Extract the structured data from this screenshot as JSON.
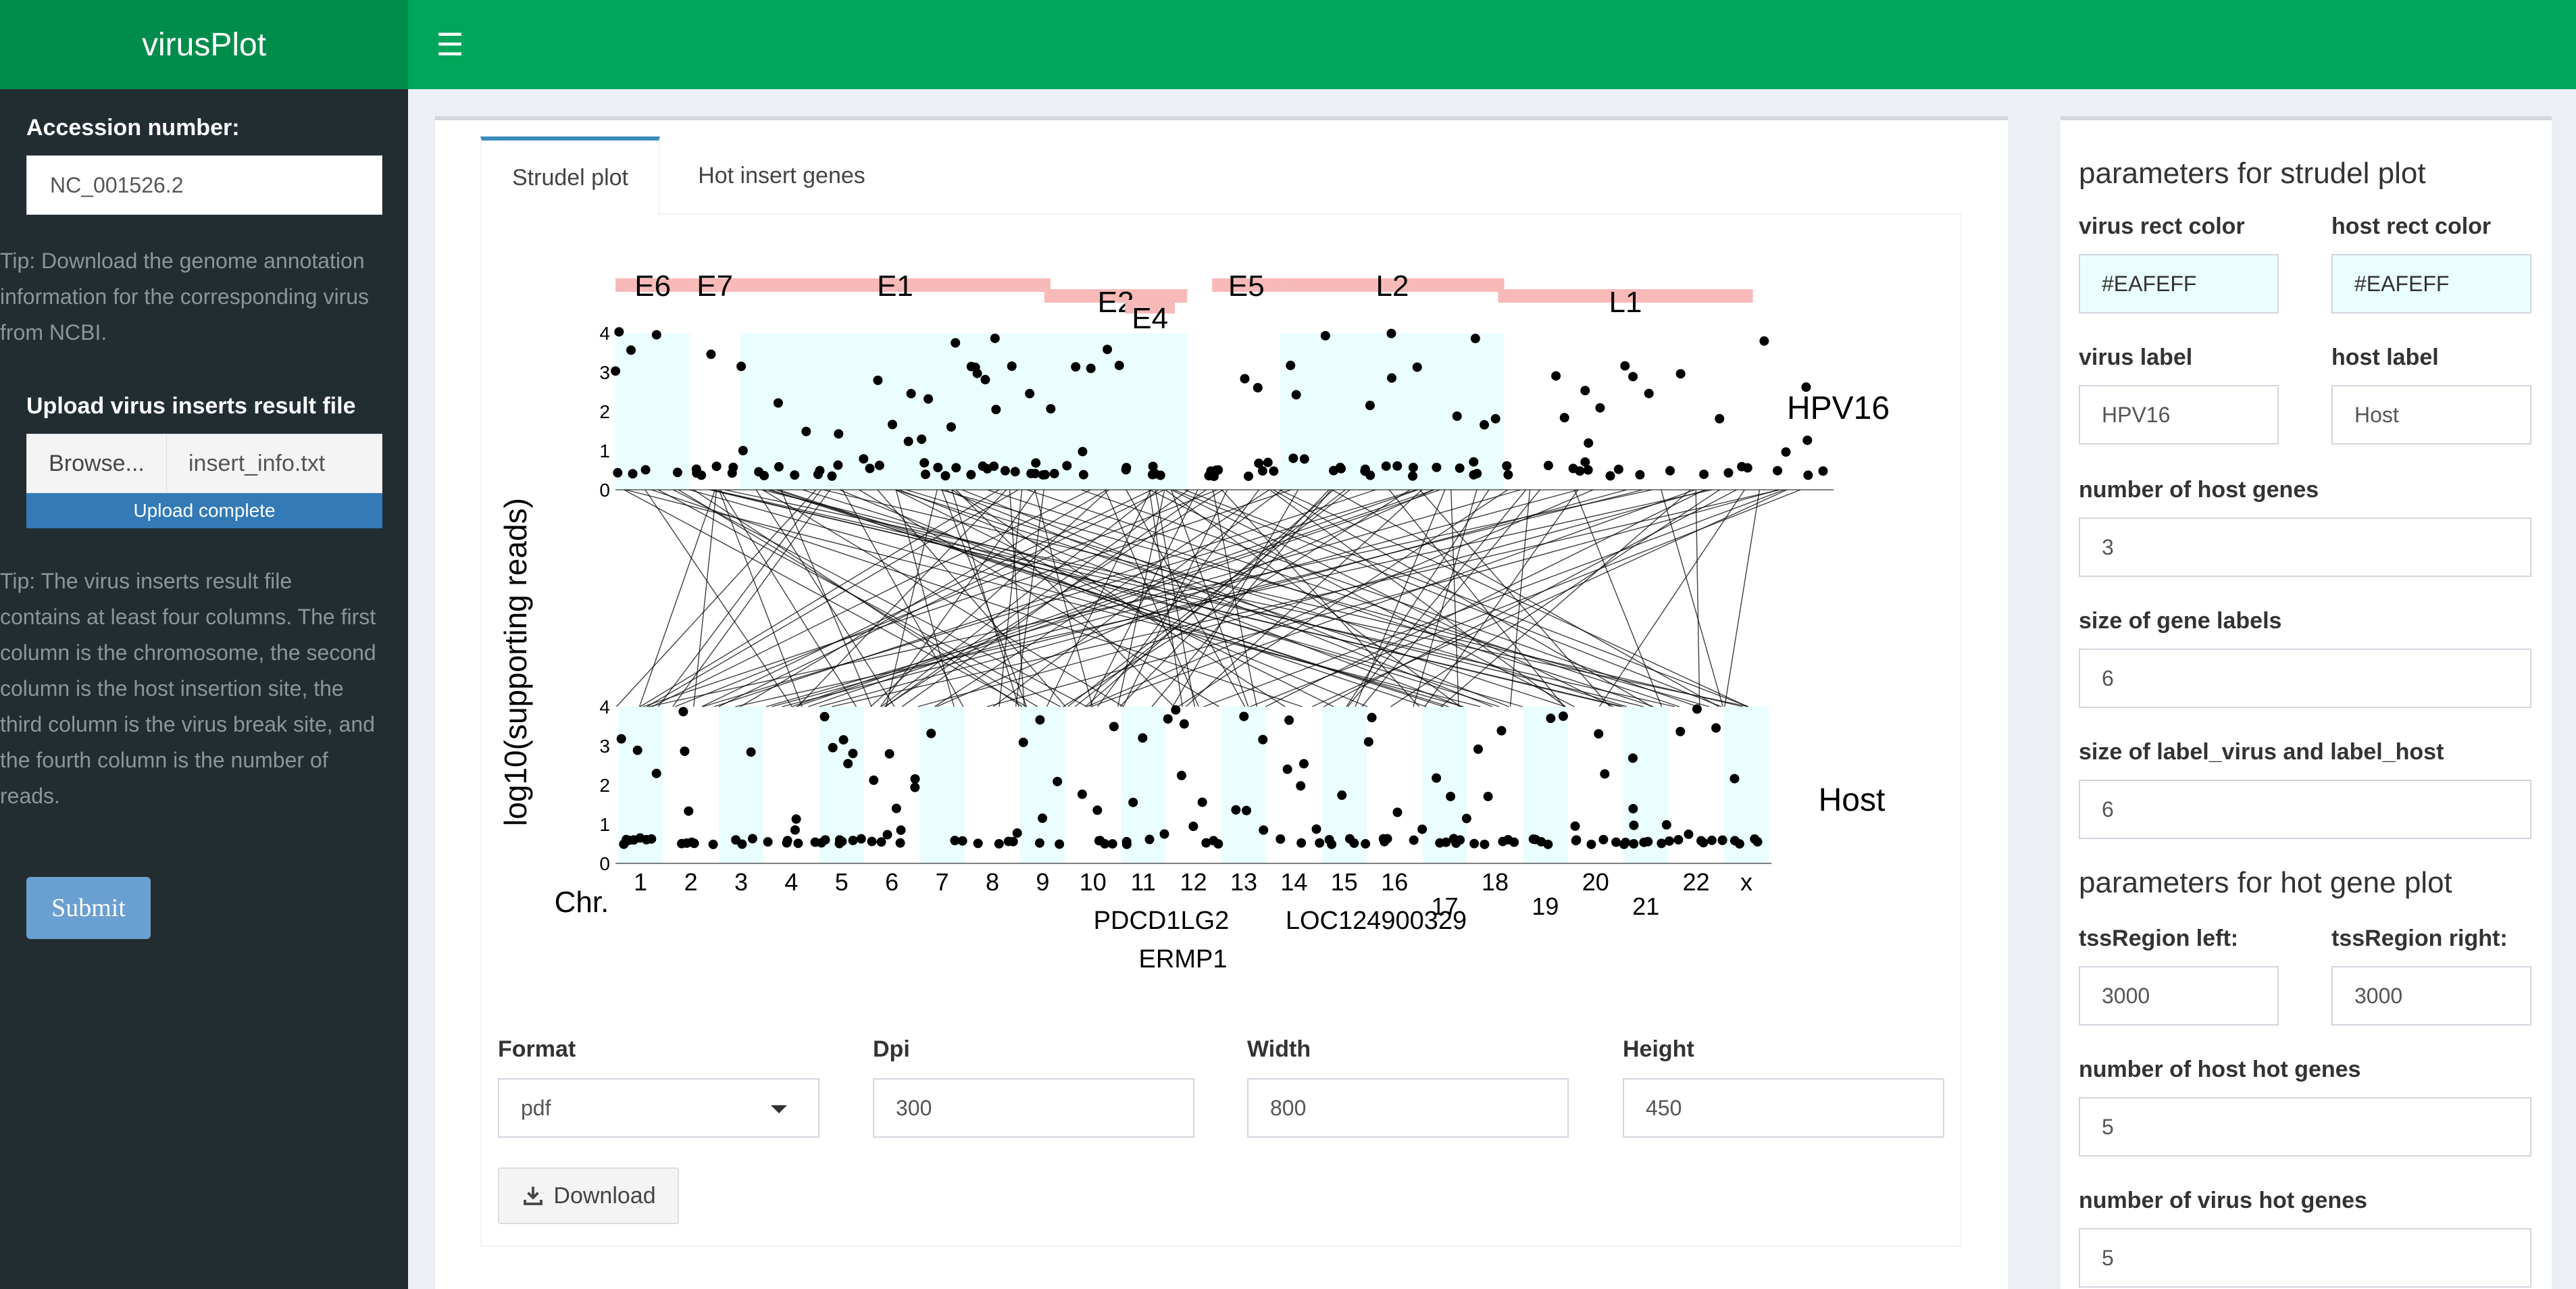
{
  "header": {
    "app_title": "virusPlot"
  },
  "sidebar": {
    "accession_label": "Accession number:",
    "accession_value": "NC_001526.2",
    "tip1": [
      "Tip: Download the genome annotation",
      "information for the corresponding virus",
      "from NCBI."
    ],
    "upload_label": "Upload virus inserts result file",
    "browse_label": "Browse...",
    "file_name": "insert_info.txt",
    "upload_status": "Upload complete",
    "tip2": [
      "Tip: The virus inserts result file",
      "contains at least four columns. The first",
      "column is the chromosome, the second",
      "column is the host insertion site, the",
      "third column is the virus break site, and",
      "the fourth column is the number of",
      "reads."
    ],
    "submit_label": "Submit"
  },
  "tabs": [
    {
      "label": "Strudel plot"
    },
    {
      "label": "Hot insert genes"
    }
  ],
  "chart_data": {
    "type": "scatter",
    "ylabel": "log10(supporting reads)",
    "virus_label": "HPV16",
    "host_label": "Host",
    "chr_label": "Chr.",
    "yticks": [
      "0",
      "1",
      "2",
      "3",
      "4"
    ],
    "virus_genes": [
      {
        "name": "E6",
        "start": 0.0,
        "end": 0.06,
        "row": 0
      },
      {
        "name": "E7",
        "start": 0.06,
        "end": 0.1,
        "row": 0
      },
      {
        "name": "E1",
        "start": 0.1,
        "end": 0.35,
        "row": 0
      },
      {
        "name": "E2",
        "start": 0.345,
        "end": 0.46,
        "row": 1
      },
      {
        "name": "E4",
        "start": 0.41,
        "end": 0.45,
        "row": 2
      },
      {
        "name": "E5",
        "start": 0.48,
        "end": 0.535,
        "row": 0
      },
      {
        "name": "L2",
        "start": 0.535,
        "end": 0.715,
        "row": 0
      },
      {
        "name": "L1",
        "start": 0.71,
        "end": 0.915,
        "row": 1
      }
    ],
    "chromosomes": [
      "1",
      "2",
      "3",
      "4",
      "5",
      "6",
      "7",
      "8",
      "9",
      "10",
      "11",
      "12",
      "13",
      "14",
      "15",
      "16",
      "17",
      "18",
      "19",
      "20",
      "21",
      "22",
      "x"
    ],
    "chromosome_rows": [
      0,
      0,
      0,
      0,
      0,
      0,
      0,
      0,
      0,
      0,
      0,
      0,
      0,
      0,
      0,
      0,
      1,
      0,
      1,
      0,
      1,
      0,
      0
    ],
    "host_gene_labels": [
      "PDCD1LG2",
      "LOC124900329",
      "ERMP1"
    ]
  },
  "download": {
    "format_label": "Format",
    "format_value": "pdf",
    "dpi_label": "Dpi",
    "dpi_value": "300",
    "width_label": "Width",
    "width_value": "800",
    "height_label": "Height",
    "height_value": "450",
    "button_label": "Download"
  },
  "right_panel": {
    "strudel_title": "parameters for strudel plot",
    "virus_rect_label": "virus rect color",
    "virus_rect_value": "#EAFEFF",
    "host_rect_label": "host rect color",
    "host_rect_value": "#EAFEFF",
    "virus_label_label": "virus label",
    "virus_label_value": "HPV16",
    "host_label_label": "host label",
    "host_label_value": "Host",
    "num_host_genes_label": "number of host genes",
    "num_host_genes_value": "3",
    "gene_label_size_label": "size of gene labels",
    "gene_label_size_value": "6",
    "label_size_label": "size of label_virus and label_host",
    "label_size_value": "6",
    "hot_title": "parameters for hot gene plot",
    "tss_left_label": "tssRegion left:",
    "tss_left_value": "3000",
    "tss_right_label": "tssRegion right:",
    "tss_right_value": "3000",
    "num_host_hot_label": "number of host hot genes",
    "num_host_hot_value": "5",
    "num_virus_hot_label": "number of virus hot genes",
    "num_virus_hot_value": "5"
  },
  "colors": {
    "header": "#00a65a",
    "logo": "#008d4c",
    "sidebar": "#222d32",
    "gene_bar": "#f8b9b9",
    "rect": "#eafeff"
  }
}
